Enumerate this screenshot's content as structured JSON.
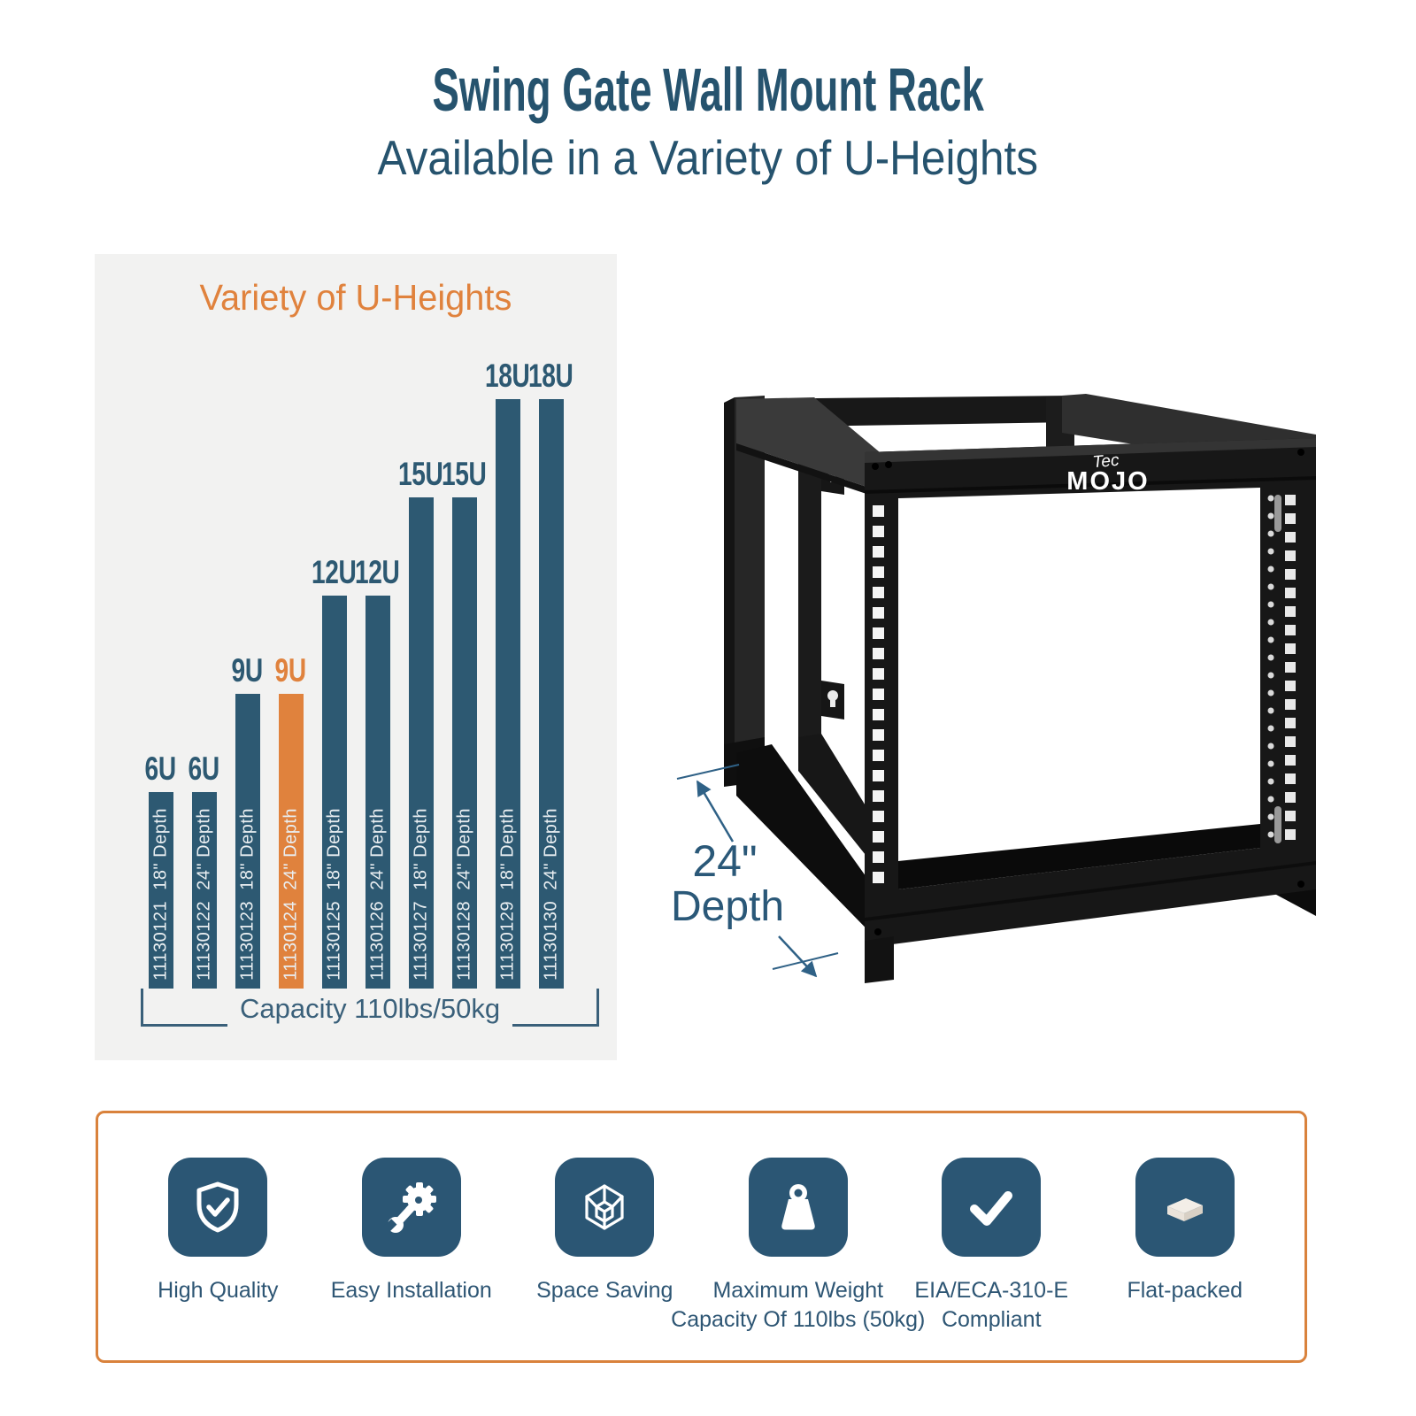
{
  "header": {
    "title": "Swing Gate Wall Mount Rack",
    "subtitle": "Available in a Variety of U-Heights"
  },
  "chart": {
    "title": "Variety of U-Heights",
    "capacity_label": "Capacity 110lbs/50kg",
    "bars": [
      {
        "u_label": "6U",
        "units": 6,
        "sku": "11130121",
        "depth": "18\" Depth",
        "highlight": false
      },
      {
        "u_label": "6U",
        "units": 6,
        "sku": "11130122",
        "depth": "24\" Depth",
        "highlight": false
      },
      {
        "u_label": "9U",
        "units": 9,
        "sku": "11130123",
        "depth": "18\" Depth",
        "highlight": false
      },
      {
        "u_label": "9U",
        "units": 9,
        "sku": "11130124",
        "depth": "24\" Depth",
        "highlight": true
      },
      {
        "u_label": "12U",
        "units": 12,
        "sku": "11130125",
        "depth": "18\" Depth",
        "highlight": false
      },
      {
        "u_label": "12U",
        "units": 12,
        "sku": "11130126",
        "depth": "24\" Depth",
        "highlight": false
      },
      {
        "u_label": "15U",
        "units": 15,
        "sku": "11130127",
        "depth": "18\" Depth",
        "highlight": false
      },
      {
        "u_label": "15U",
        "units": 15,
        "sku": "11130128",
        "depth": "24\" Depth",
        "highlight": false
      },
      {
        "u_label": "18U",
        "units": 18,
        "sku": "11130129",
        "depth": "18\" Depth",
        "highlight": false
      },
      {
        "u_label": "18U",
        "units": 18,
        "sku": "11130130",
        "depth": "24\" Depth",
        "highlight": false
      }
    ]
  },
  "chart_data": {
    "type": "bar",
    "title": "Variety of U-Heights",
    "categories": [
      "11130121",
      "11130122",
      "11130123",
      "11130124",
      "11130125",
      "11130126",
      "11130127",
      "11130128",
      "11130129",
      "11130130"
    ],
    "series": [
      {
        "name": "U-Height",
        "values": [
          6,
          6,
          9,
          9,
          12,
          12,
          15,
          15,
          18,
          18
        ]
      }
    ],
    "bar_labels": [
      "6U",
      "6U",
      "9U",
      "9U",
      "12U",
      "12U",
      "15U",
      "15U",
      "18U",
      "18U"
    ],
    "depth_labels": [
      "18\" Depth",
      "24\" Depth",
      "18\" Depth",
      "24\" Depth",
      "18\" Depth",
      "24\" Depth",
      "18\" Depth",
      "24\" Depth",
      "18\" Depth",
      "24\" Depth"
    ],
    "highlighted_index": 3,
    "annotation": "Capacity 110lbs/50kg",
    "bar_color": "#2D5972",
    "highlight_color": "#E0823D",
    "background": "#F2F2F1",
    "axes": "none",
    "legend": false
  },
  "product": {
    "brand_top": "Tec",
    "brand_bottom": "MOJO",
    "depth_value": "24\"",
    "depth_word": "Depth"
  },
  "features": [
    {
      "icon": "shield-check-icon",
      "label": "High Quality"
    },
    {
      "icon": "wrench-gear-icon",
      "label": "Easy Installation"
    },
    {
      "icon": "cube-icon",
      "label": "Space Saving"
    },
    {
      "icon": "weight-icon",
      "label": "Maximum Weight\nCapacity Of 110lbs (50kg)"
    },
    {
      "icon": "checkmark-icon",
      "label": "EIA/ECA-310-E\nCompliant"
    },
    {
      "icon": "flat-box-icon",
      "label": "Flat-packed"
    }
  ],
  "colors": {
    "heading_blue": "#26536E",
    "bar_teal": "#2D5972",
    "accent_orange": "#E0823D",
    "panel_gray": "#F2F2F1",
    "border_orange": "#D9823C",
    "tile_teal": "#2B5674",
    "annotation_blue": "#2A5878"
  }
}
